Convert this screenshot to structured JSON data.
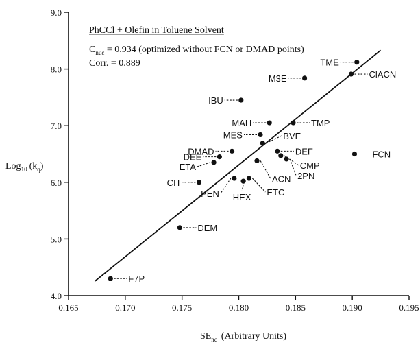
{
  "chart_data": {
    "type": "scatter",
    "title": "PhCCl + Olefin in Toluene Solvent",
    "annotations": {
      "cnuc_label": "C",
      "cnuc_subscript": "nuc",
      "cnuc_text": " = 0.934 (optimized without FCN or DMAD points)",
      "corr_text": "Corr. = 0.889"
    },
    "xlabel": {
      "main": "SE",
      "sub": "nc",
      "rest": "(Arbitrary Units)"
    },
    "ylabel": {
      "main": "Log",
      "sub": "10",
      "rest": "(k",
      "sub2": "q",
      "end": ")"
    },
    "xlim": [
      0.165,
      0.195
    ],
    "ylim": [
      4.0,
      9.0
    ],
    "xticks": [
      0.165,
      0.17,
      0.175,
      0.18,
      0.185,
      0.19,
      0.195
    ],
    "xtick_labels": [
      "0.165",
      "0.170",
      "0.175",
      "0.180",
      "0.185",
      "0.190",
      "0.195"
    ],
    "yticks": [
      4.0,
      5.0,
      6.0,
      7.0,
      8.0,
      9.0
    ],
    "ytick_labels": [
      "4.0",
      "5.0",
      "6.0",
      "7.0",
      "8.0",
      "9.0"
    ],
    "grid": false,
    "fit_line": {
      "x": [
        0.1673,
        0.1925
      ],
      "y": [
        4.25,
        8.33
      ]
    },
    "points": [
      {
        "label": "F7P",
        "x": 0.1687,
        "y": 4.3
      },
      {
        "label": "DEM",
        "x": 0.1748,
        "y": 5.2
      },
      {
        "label": "CIT",
        "x": 0.1765,
        "y": 6.0
      },
      {
        "label": "ETA",
        "x": 0.1778,
        "y": 6.35
      },
      {
        "label": "DEE",
        "x": 0.1783,
        "y": 6.45
      },
      {
        "label": "DMAD",
        "x": 0.1794,
        "y": 6.55
      },
      {
        "label": "IBU",
        "x": 0.1802,
        "y": 7.45
      },
      {
        "label": "PEN",
        "x": 0.1796,
        "y": 6.07
      },
      {
        "label": "HEX",
        "x": 0.1804,
        "y": 6.02
      },
      {
        "label": "ETC",
        "x": 0.1809,
        "y": 6.07
      },
      {
        "label": "ACN",
        "x": 0.1816,
        "y": 6.38
      },
      {
        "label": "MES",
        "x": 0.1819,
        "y": 6.84
      },
      {
        "label": "MAH",
        "x": 0.1827,
        "y": 7.05
      },
      {
        "label": "BVE",
        "x": 0.1821,
        "y": 6.69
      },
      {
        "label": "TMP",
        "x": 0.1848,
        "y": 7.05
      },
      {
        "label": "DEF",
        "x": 0.1834,
        "y": 6.55
      },
      {
        "label": "CMP",
        "x": 0.1837,
        "y": 6.47
      },
      {
        "label": "2PN",
        "x": 0.1842,
        "y": 6.41
      },
      {
        "label": "M3E",
        "x": 0.1858,
        "y": 7.84
      },
      {
        "label": "ClACN",
        "x": 0.1899,
        "y": 7.91
      },
      {
        "label": "TME",
        "x": 0.1904,
        "y": 8.12
      },
      {
        "label": "FCN",
        "x": 0.1902,
        "y": 6.5
      }
    ]
  }
}
